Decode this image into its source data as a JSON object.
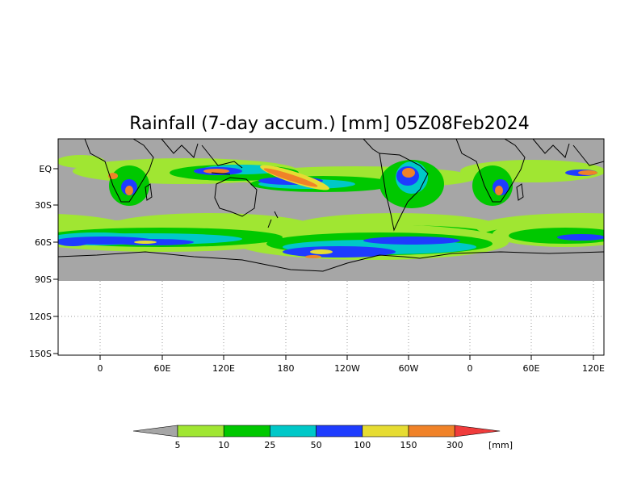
{
  "title": "Rainfall (7-day accum.) [mm] 05Z08Feb2024",
  "map": {
    "land_outline_color": "#000000",
    "ocean_dry_color": "#a6a6a6",
    "missing_region_color": "#ffffff",
    "y_tick_labels": [
      "EQ",
      "30S",
      "60S",
      "90S",
      "120S",
      "150S"
    ],
    "x_tick_labels": [
      "0",
      "60E",
      "120E",
      "180",
      "120W",
      "60W",
      "0",
      "60E",
      "120E"
    ],
    "grid": "dotted"
  },
  "colorbar": {
    "unit_label": "[mm]",
    "boundaries": [
      "5",
      "10",
      "25",
      "50",
      "100",
      "150",
      "300"
    ],
    "colors": [
      "#a6a6a6",
      "#a0e632",
      "#00c800",
      "#00c8c8",
      "#1e3cff",
      "#e6dc32",
      "#f08228",
      "#f03c3c"
    ]
  },
  "chart_data": {
    "type": "heatmap",
    "title": "Rainfall (7-day accum.) [mm] 05Z08Feb2024",
    "variable": "7-day accumulated rainfall",
    "units": "mm",
    "levels_mm": [
      5,
      10,
      25,
      50,
      100,
      150,
      300
    ],
    "xlabel": "",
    "ylabel": "",
    "lon_ticks": [
      "0",
      "60E",
      "120E",
      "180",
      "120W",
      "60W",
      "0",
      "60E",
      "120E"
    ],
    "lat_ticks": [
      "EQ",
      "30S",
      "60S",
      "90S",
      "120S",
      "150S"
    ],
    "notes": "Heavy rainfall (100-300+ mm) concentrated over the western and central tropical Pacific and Maritime Continent, southern Africa and South America; Southern Ocean storm track band of 50-150 mm near 55-65S."
  }
}
